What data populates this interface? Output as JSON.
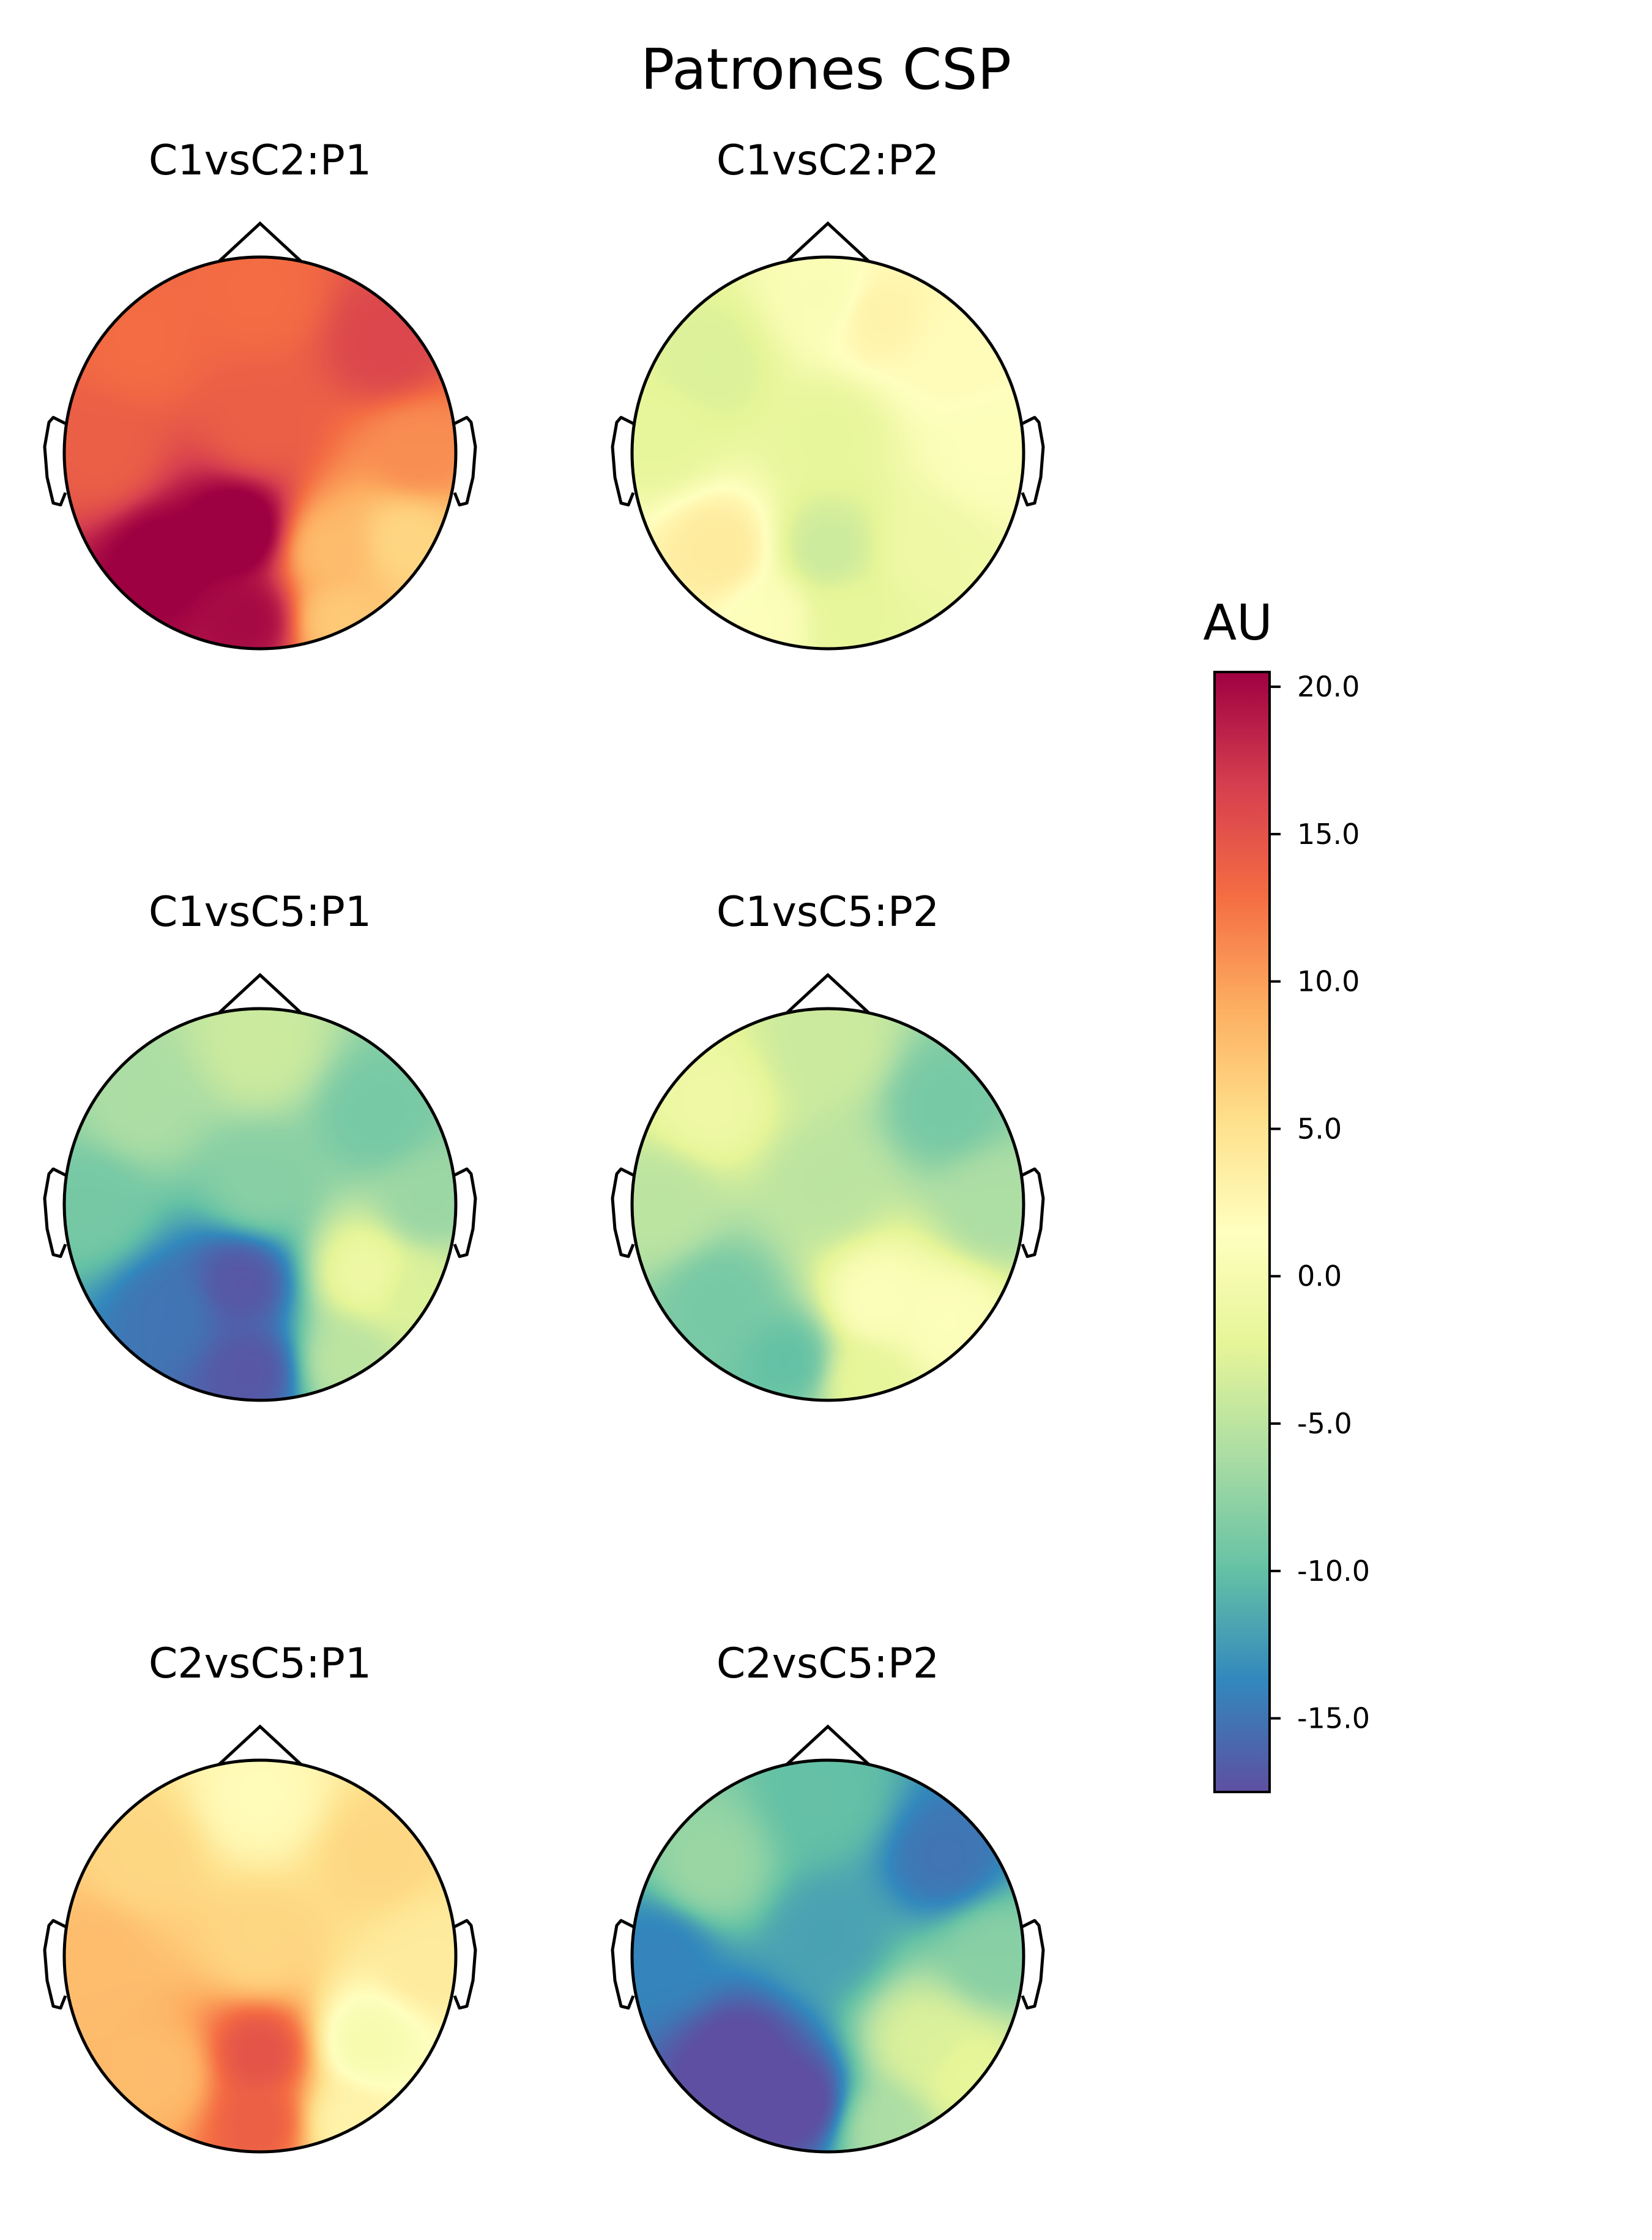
{
  "figure": {
    "title": "Patrones CSP"
  },
  "colorbar": {
    "label": "AU",
    "vmin": -17.5,
    "vmax": 20.5,
    "ticks": [
      20.0,
      15.0,
      10.0,
      5.0,
      0.0,
      -5.0,
      -10.0,
      -15.0
    ],
    "tick_labels": [
      "20.0",
      "15.0",
      "10.0",
      "5.0",
      "0.0",
      "-5.0",
      "-10.0",
      "-15.0"
    ],
    "colormap": "Spectral_r",
    "stops": [
      "#5e4fa2",
      "#3288bd",
      "#66c2a5",
      "#abdda4",
      "#e6f598",
      "#ffffbf",
      "#fee08b",
      "#fdae61",
      "#f46d43",
      "#d53e4f",
      "#9e0142"
    ]
  },
  "chart_data": [
    {
      "type": "heatmap",
      "subtype": "scalp-topomap",
      "title": "C1vsC2:P1",
      "sources": [
        {
          "x": 0.0,
          "y": 0.8,
          "v": 13
        },
        {
          "x": -0.6,
          "y": 0.55,
          "v": 13
        },
        {
          "x": 0.65,
          "y": 0.55,
          "v": 16
        },
        {
          "x": -0.8,
          "y": 0.0,
          "v": 14
        },
        {
          "x": 0.0,
          "y": 0.15,
          "v": 14
        },
        {
          "x": 0.8,
          "y": 0.0,
          "v": 11
        },
        {
          "x": -0.5,
          "y": -0.55,
          "v": 21
        },
        {
          "x": -0.1,
          "y": -0.4,
          "v": 22
        },
        {
          "x": -0.05,
          "y": -0.85,
          "v": 20
        },
        {
          "x": 0.35,
          "y": -0.5,
          "v": 8
        },
        {
          "x": 0.75,
          "y": -0.45,
          "v": 6
        },
        {
          "x": 0.4,
          "y": -0.85,
          "v": 7
        }
      ]
    },
    {
      "type": "heatmap",
      "subtype": "scalp-topomap",
      "title": "C1vsC2:P2",
      "sources": [
        {
          "x": 0.0,
          "y": 0.8,
          "v": 0.5
        },
        {
          "x": 0.25,
          "y": 0.7,
          "v": 3
        },
        {
          "x": -0.6,
          "y": 0.45,
          "v": -3
        },
        {
          "x": 0.65,
          "y": 0.5,
          "v": 2
        },
        {
          "x": -0.85,
          "y": 0.1,
          "v": -2
        },
        {
          "x": 0.0,
          "y": 0.1,
          "v": -2
        },
        {
          "x": 0.8,
          "y": 0.0,
          "v": 1
        },
        {
          "x": -0.55,
          "y": -0.5,
          "v": 4
        },
        {
          "x": 0.0,
          "y": -0.5,
          "v": -4
        },
        {
          "x": 0.1,
          "y": -0.85,
          "v": -2
        },
        {
          "x": 0.5,
          "y": -0.5,
          "v": -1
        },
        {
          "x": -0.3,
          "y": -0.85,
          "v": 1
        }
      ]
    },
    {
      "type": "heatmap",
      "subtype": "scalp-topomap",
      "title": "C1vsC5:P1",
      "sources": [
        {
          "x": 0.0,
          "y": 0.8,
          "v": -4
        },
        {
          "x": -0.6,
          "y": 0.5,
          "v": -6
        },
        {
          "x": 0.6,
          "y": 0.45,
          "v": -9
        },
        {
          "x": -0.85,
          "y": 0.0,
          "v": -9
        },
        {
          "x": 0.0,
          "y": 0.1,
          "v": -8
        },
        {
          "x": 0.85,
          "y": 0.0,
          "v": -7
        },
        {
          "x": -0.45,
          "y": -0.55,
          "v": -15
        },
        {
          "x": -0.1,
          "y": -0.4,
          "v": -17
        },
        {
          "x": -0.05,
          "y": -0.85,
          "v": -17
        },
        {
          "x": 0.55,
          "y": -0.35,
          "v": -1
        },
        {
          "x": 0.45,
          "y": -0.8,
          "v": -5
        },
        {
          "x": 0.8,
          "y": -0.45,
          "v": -3
        }
      ]
    },
    {
      "type": "heatmap",
      "subtype": "scalp-topomap",
      "title": "C1vsC5:P2",
      "sources": [
        {
          "x": 0.0,
          "y": 0.8,
          "v": -4
        },
        {
          "x": -0.6,
          "y": 0.5,
          "v": -1
        },
        {
          "x": 0.6,
          "y": 0.5,
          "v": -9
        },
        {
          "x": -0.85,
          "y": 0.0,
          "v": -5
        },
        {
          "x": 0.0,
          "y": 0.1,
          "v": -5
        },
        {
          "x": 0.85,
          "y": 0.0,
          "v": -6
        },
        {
          "x": -0.55,
          "y": -0.5,
          "v": -9
        },
        {
          "x": -0.2,
          "y": -0.8,
          "v": -10
        },
        {
          "x": 0.25,
          "y": -0.5,
          "v": 1
        },
        {
          "x": 0.6,
          "y": -0.6,
          "v": 1
        },
        {
          "x": 0.2,
          "y": -0.9,
          "v": -2
        }
      ]
    },
    {
      "type": "heatmap",
      "subtype": "scalp-topomap",
      "title": "C2vsC5:P1",
      "sources": [
        {
          "x": 0.0,
          "y": 0.8,
          "v": 2
        },
        {
          "x": -0.6,
          "y": 0.5,
          "v": 6
        },
        {
          "x": 0.6,
          "y": 0.5,
          "v": 6
        },
        {
          "x": -0.85,
          "y": 0.0,
          "v": 8
        },
        {
          "x": 0.0,
          "y": 0.05,
          "v": 6
        },
        {
          "x": 0.85,
          "y": 0.0,
          "v": 4
        },
        {
          "x": 0.0,
          "y": -0.5,
          "v": 15
        },
        {
          "x": 0.0,
          "y": -0.85,
          "v": 14
        },
        {
          "x": -0.5,
          "y": -0.6,
          "v": 8
        },
        {
          "x": 0.55,
          "y": -0.45,
          "v": 0
        },
        {
          "x": 0.45,
          "y": -0.85,
          "v": 3
        }
      ]
    },
    {
      "type": "heatmap",
      "subtype": "scalp-topomap",
      "title": "C2vsC5:P2",
      "sources": [
        {
          "x": 0.0,
          "y": 0.8,
          "v": -10
        },
        {
          "x": -0.6,
          "y": 0.45,
          "v": -7
        },
        {
          "x": 0.6,
          "y": 0.5,
          "v": -15
        },
        {
          "x": -0.85,
          "y": 0.0,
          "v": -14
        },
        {
          "x": 0.0,
          "y": 0.1,
          "v": -12
        },
        {
          "x": 0.85,
          "y": 0.0,
          "v": -8
        },
        {
          "x": -0.45,
          "y": -0.55,
          "v": -18
        },
        {
          "x": -0.15,
          "y": -0.75,
          "v": -18
        },
        {
          "x": 0.5,
          "y": -0.45,
          "v": -3
        },
        {
          "x": 0.7,
          "y": -0.6,
          "v": -2
        },
        {
          "x": 0.3,
          "y": -0.88,
          "v": -6
        }
      ]
    }
  ]
}
